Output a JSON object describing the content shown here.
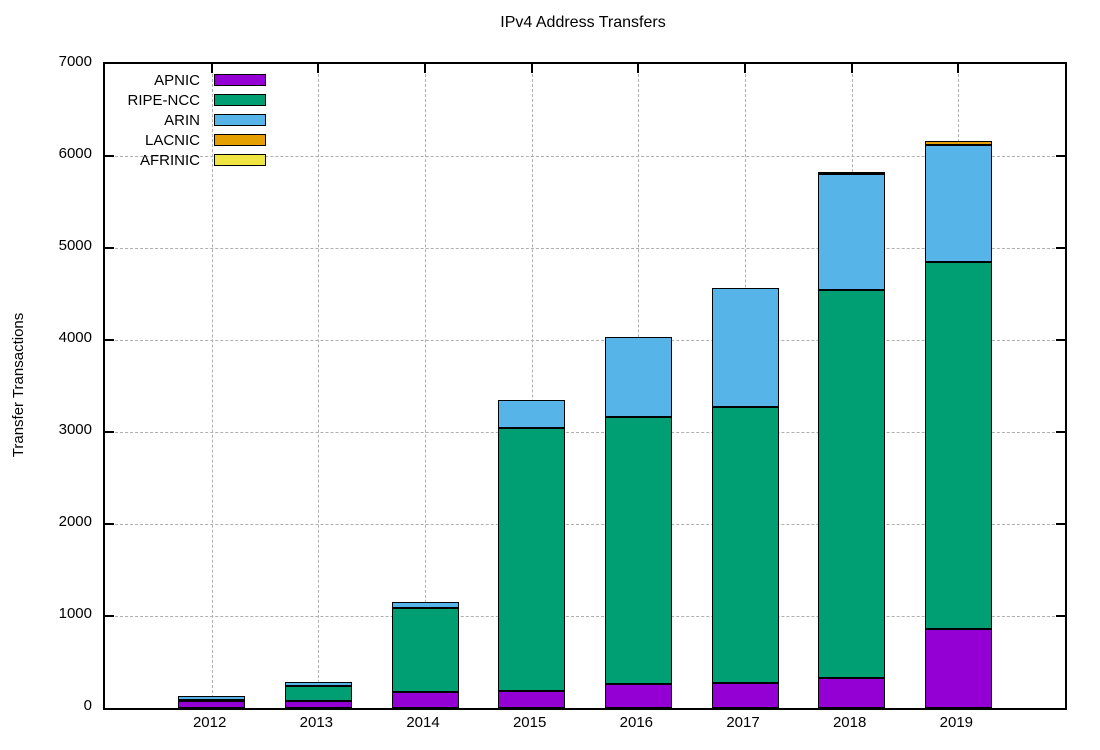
{
  "title": "IPv4 Address Transfers",
  "ylabel": "Transfer Transactions",
  "chart_data": {
    "type": "bar",
    "stacked": true,
    "title": "IPv4 Address Transfers",
    "xlabel": "",
    "ylabel": "Transfer Transactions",
    "categories": [
      "2012",
      "2013",
      "2014",
      "2015",
      "2016",
      "2017",
      "2018",
      "2019"
    ],
    "series": [
      {
        "name": "APNIC",
        "color": "#9400D3",
        "values": [
          75,
          80,
          175,
          185,
          260,
          270,
          325,
          860
        ]
      },
      {
        "name": "RIPE-NCC",
        "color": "#009E73",
        "values": [
          10,
          155,
          915,
          2860,
          2905,
          3000,
          4220,
          3990
        ]
      },
      {
        "name": "ARIN",
        "color": "#56B4E9",
        "values": [
          45,
          50,
          60,
          305,
          870,
          1295,
          1260,
          1270
        ]
      },
      {
        "name": "LACNIC",
        "color": "#E69F00",
        "values": [
          0,
          0,
          0,
          0,
          0,
          0,
          25,
          45
        ]
      },
      {
        "name": "AFRINIC",
        "color": "#F0E442",
        "values": [
          0,
          0,
          0,
          0,
          0,
          0,
          0,
          0
        ]
      }
    ],
    "ylim": [
      0,
      7000
    ],
    "yticks": [
      0,
      1000,
      2000,
      3000,
      4000,
      5000,
      6000,
      7000
    ],
    "grid": true,
    "grid_color": "#b0b0b0",
    "legend_position": "top-left",
    "bar_border_color": "#000000"
  }
}
